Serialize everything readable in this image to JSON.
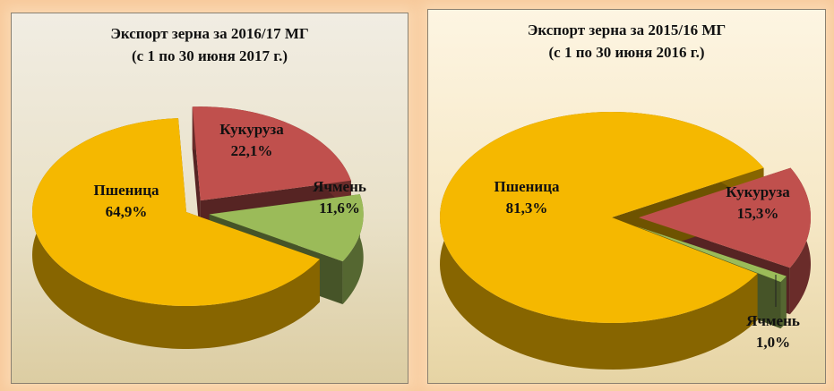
{
  "chart_data": [
    {
      "type": "pie",
      "title": "Экспорт зерна за 2016/17 МГ",
      "subtitle": "(с 1 по 30 июня 2017 г.)",
      "slices": [
        {
          "label": "Кукуруза",
          "value": 22.1,
          "value_label": "22,1%",
          "color": "#c0504d",
          "exploded": true
        },
        {
          "label": "Ячмень",
          "value": 11.6,
          "value_label": "11,6%",
          "color": "#9bbb59",
          "exploded": true
        },
        {
          "label": "Пшеница",
          "value": 64.9,
          "value_label": "64,9%",
          "color": "#f5b800",
          "exploded": false
        }
      ]
    },
    {
      "type": "pie",
      "title": "Экспорт зерна за 2015/16 МГ",
      "subtitle": "(с 1 по 30 июня 2016 г.)",
      "slices": [
        {
          "label": "Кукуруза",
          "value": 15.3,
          "value_label": "15,3%",
          "color": "#c0504d",
          "exploded": true
        },
        {
          "label": "Ячмень",
          "value": 1.0,
          "value_label": "1,0%",
          "color": "#9bbb59",
          "exploded": true
        },
        {
          "label": "Пшеница",
          "value": 81.3,
          "value_label": "81,3%",
          "color": "#f5b800",
          "exploded": false
        }
      ]
    }
  ]
}
